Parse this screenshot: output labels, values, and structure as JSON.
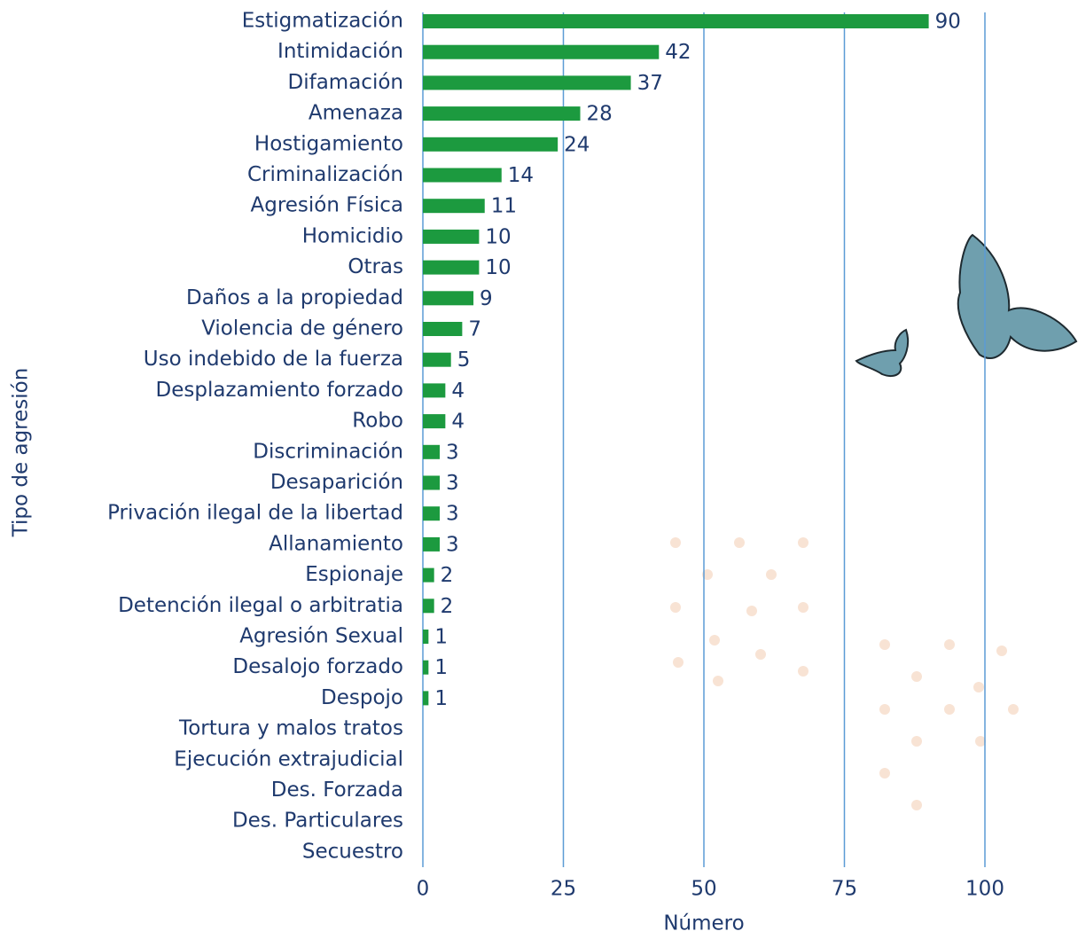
{
  "chart_data": {
    "type": "barh",
    "x_label": "Número",
    "y_label": "Tipo de agresión",
    "categories": [
      "Estigmatización",
      "Intimidación",
      "Difamación",
      "Amenaza",
      "Hostigamiento",
      "Criminalización",
      "Agresión Física",
      "Homicidio",
      "Otras",
      "Daños a la propiedad",
      "Violencia de género",
      "Uso indebido de la fuerza",
      "Desplazamiento forzado",
      "Robo",
      "Discriminación",
      "Desaparición",
      "Privación ilegal de la libertad",
      "Allanamiento",
      "Espionaje",
      "Detención ilegal o arbitratia",
      "Agresión Sexual",
      "Desalojo forzado",
      "Despojo",
      "Tortura y malos tratos",
      "Ejecución extrajudicial",
      "Des. Forzada",
      "Des. Particulares",
      "Secuestro"
    ],
    "values": [
      90,
      42,
      37,
      28,
      24,
      14,
      11,
      10,
      10,
      9,
      7,
      5,
      4,
      4,
      3,
      3,
      3,
      3,
      2,
      2,
      1,
      1,
      1,
      null,
      null,
      null,
      null,
      null
    ],
    "color": "#1c9a3f",
    "xlim": [
      0,
      100
    ],
    "xticks": [
      0,
      25,
      50,
      75,
      100
    ],
    "grid": true
  }
}
